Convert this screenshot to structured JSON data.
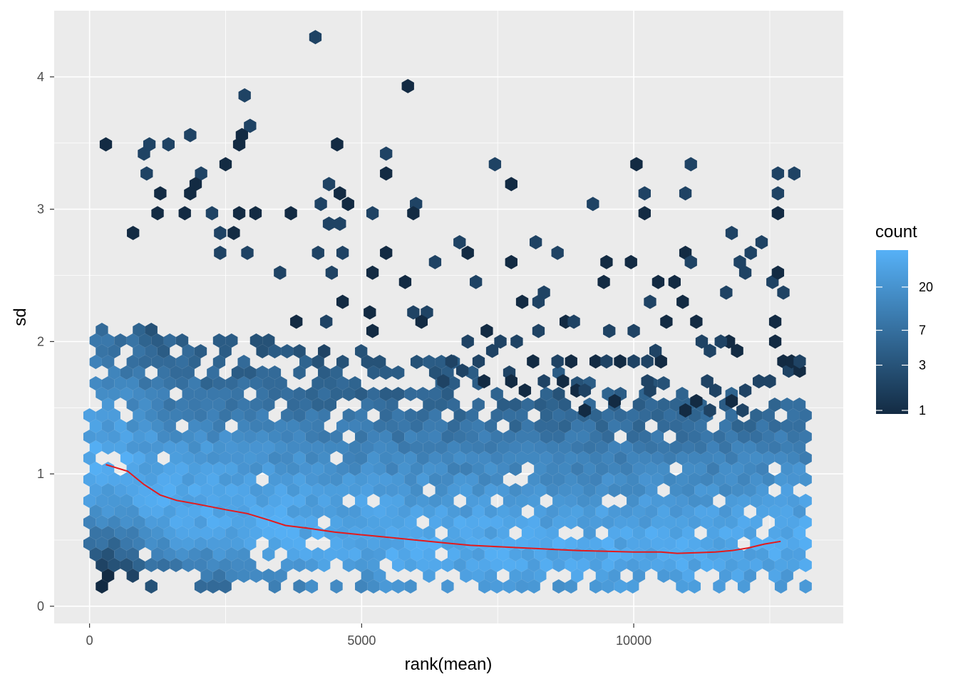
{
  "chart_data": {
    "type": "hexbin",
    "xlabel": "rank(mean)",
    "ylabel": "sd",
    "xlim": [
      -650,
      13850
    ],
    "ylim": [
      -0.13,
      4.5
    ],
    "x_ticks": [
      0,
      5000,
      10000
    ],
    "x_tick_labels": [
      "0",
      "5000",
      "10000"
    ],
    "y_ticks": [
      0,
      1,
      2,
      3,
      4
    ],
    "y_tick_labels": [
      "0",
      "1",
      "2",
      "3",
      "4"
    ],
    "grid": true,
    "legend": {
      "title": "count",
      "position": "right",
      "scale": "log",
      "breaks": [
        1,
        3,
        7,
        20
      ],
      "break_labels": [
        "1",
        "3",
        "7",
        "20"
      ],
      "low_color": "#132B43",
      "high_color": "#56B1F7",
      "max_count": 45
    },
    "trend_line": {
      "color": "#e41a1c",
      "x": [
        300,
        700,
        1000,
        1300,
        1600,
        2000,
        2500,
        2900,
        3300,
        3600,
        4000,
        4500,
        5000,
        5500,
        6000,
        6500,
        7000,
        7500,
        8000,
        8500,
        9000,
        9500,
        10000,
        10500,
        10800,
        11200,
        11500,
        11800,
        12100,
        12400,
        12700
      ],
      "y": [
        1.07,
        1.02,
        0.92,
        0.84,
        0.8,
        0.77,
        0.73,
        0.7,
        0.65,
        0.61,
        0.59,
        0.56,
        0.54,
        0.52,
        0.5,
        0.48,
        0.46,
        0.45,
        0.44,
        0.43,
        0.42,
        0.415,
        0.41,
        0.41,
        0.4,
        0.405,
        0.41,
        0.42,
        0.44,
        0.47,
        0.49
      ]
    },
    "sparse_hexes": [
      [
        300,
        3.49
      ],
      [
        1000,
        3.42
      ],
      [
        1100,
        3.49
      ],
      [
        1450,
        3.49
      ],
      [
        1850,
        3.56
      ],
      [
        2500,
        3.34
      ],
      [
        2850,
        3.86
      ],
      [
        2950,
        3.63
      ],
      [
        2800,
        3.56
      ],
      [
        2750,
        3.49
      ],
      [
        4150,
        4.3
      ],
      [
        4400,
        3.19
      ],
      [
        4550,
        3.49
      ],
      [
        5450,
        3.42
      ],
      [
        5450,
        3.27
      ],
      [
        5850,
        3.93
      ],
      [
        7450,
        3.34
      ],
      [
        7750,
        3.19
      ],
      [
        9250,
        3.04
      ],
      [
        10050,
        3.34
      ],
      [
        10200,
        3.12
      ],
      [
        10200,
        2.97
      ],
      [
        11050,
        3.34
      ],
      [
        10950,
        3.12
      ],
      [
        12650,
        3.27
      ],
      [
        12950,
        3.27
      ],
      [
        12650,
        3.12
      ],
      [
        12650,
        2.97
      ],
      [
        1050,
        3.27
      ],
      [
        2050,
        3.27
      ],
      [
        1950,
        3.19
      ],
      [
        1300,
        3.12
      ],
      [
        1250,
        2.97
      ],
      [
        1750,
        2.97
      ],
      [
        3700,
        2.97
      ],
      [
        4250,
        3.04
      ],
      [
        4600,
        3.12
      ],
      [
        4750,
        3.04
      ],
      [
        5200,
        2.97
      ],
      [
        6000,
        3.04
      ],
      [
        5950,
        2.97
      ],
      [
        4400,
        2.89
      ],
      [
        4600,
        2.89
      ],
      [
        3050,
        2.97
      ],
      [
        2750,
        2.97
      ],
      [
        2650,
        2.82
      ],
      [
        2400,
        2.82
      ],
      [
        2250,
        2.97
      ],
      [
        1850,
        3.12
      ],
      [
        800,
        2.82
      ],
      [
        11800,
        2.82
      ],
      [
        12350,
        2.75
      ],
      [
        12150,
        2.67
      ],
      [
        6800,
        2.75
      ],
      [
        6950,
        2.67
      ],
      [
        8200,
        2.75
      ],
      [
        8600,
        2.67
      ],
      [
        7750,
        2.6
      ],
      [
        9500,
        2.6
      ],
      [
        9950,
        2.6
      ],
      [
        10950,
        2.67
      ],
      [
        11050,
        2.6
      ],
      [
        11950,
        2.6
      ],
      [
        12050,
        2.52
      ],
      [
        4200,
        2.67
      ],
      [
        4650,
        2.67
      ],
      [
        5450,
        2.67
      ],
      [
        2400,
        2.67
      ],
      [
        2900,
        2.67
      ],
      [
        3500,
        2.52
      ],
      [
        4450,
        2.52
      ],
      [
        5200,
        2.52
      ],
      [
        7100,
        2.45
      ],
      [
        9450,
        2.45
      ],
      [
        10450,
        2.45
      ],
      [
        10750,
        2.45
      ],
      [
        11700,
        2.37
      ],
      [
        12550,
        2.45
      ],
      [
        12650,
        2.52
      ],
      [
        12750,
        2.37
      ],
      [
        8350,
        2.37
      ],
      [
        8250,
        2.3
      ],
      [
        7950,
        2.3
      ],
      [
        10300,
        2.3
      ],
      [
        10900,
        2.3
      ],
      [
        6200,
        2.22
      ],
      [
        5800,
        2.45
      ],
      [
        6100,
        2.15
      ],
      [
        10000,
        2.08
      ],
      [
        9550,
        2.08
      ],
      [
        11150,
        2.15
      ],
      [
        10600,
        2.15
      ],
      [
        12600,
        2.15
      ],
      [
        8250,
        2.08
      ],
      [
        8750,
        2.15
      ],
      [
        8900,
        2.15
      ],
      [
        4650,
        2.3
      ],
      [
        5150,
        2.22
      ],
      [
        5950,
        2.22
      ],
      [
        4350,
        2.15
      ],
      [
        6350,
        2.6
      ],
      [
        5200,
        2.08
      ],
      [
        3800,
        2.15
      ],
      [
        11750,
        2.0
      ],
      [
        11600,
        2.0
      ],
      [
        12600,
        2.0
      ],
      [
        11400,
        1.93
      ],
      [
        11250,
        2.0
      ],
      [
        11900,
        1.93
      ],
      [
        10250,
        1.85
      ],
      [
        10500,
        1.85
      ],
      [
        10400,
        1.93
      ],
      [
        9750,
        1.85
      ],
      [
        10000,
        1.85
      ],
      [
        9300,
        1.85
      ],
      [
        9500,
        1.85
      ],
      [
        8850,
        1.85
      ],
      [
        8600,
        1.85
      ],
      [
        8150,
        1.85
      ],
      [
        7550,
        2.0
      ],
      [
        7400,
        1.93
      ],
      [
        7850,
        2.0
      ],
      [
        7150,
        1.85
      ],
      [
        6650,
        1.85
      ],
      [
        6950,
        2.0
      ],
      [
        7300,
        2.08
      ],
      [
        6850,
        1.78
      ],
      [
        6500,
        1.7
      ],
      [
        7250,
        1.7
      ],
      [
        7750,
        1.7
      ],
      [
        8350,
        1.7
      ],
      [
        8000,
        1.63
      ],
      [
        8700,
        1.7
      ],
      [
        8950,
        1.63
      ],
      [
        9100,
        1.63
      ],
      [
        9650,
        1.55
      ],
      [
        10300,
        1.63
      ],
      [
        10250,
        1.7
      ],
      [
        11350,
        1.7
      ],
      [
        11150,
        1.55
      ],
      [
        11500,
        1.63
      ],
      [
        11800,
        1.55
      ],
      [
        12300,
        1.7
      ],
      [
        12500,
        1.7
      ],
      [
        12050,
        1.63
      ],
      [
        9100,
        1.48
      ],
      [
        10950,
        1.48
      ],
      [
        11400,
        1.48
      ],
      [
        12000,
        1.48
      ],
      [
        12750,
        1.85
      ],
      [
        12850,
        1.78
      ],
      [
        13050,
        1.78
      ],
      [
        12900,
        1.85
      ],
      [
        13050,
        1.85
      ]
    ],
    "dense_region": {
      "x_range": [
        0,
        13200
      ],
      "sd_range": [
        0.15,
        2.1
      ]
    }
  }
}
